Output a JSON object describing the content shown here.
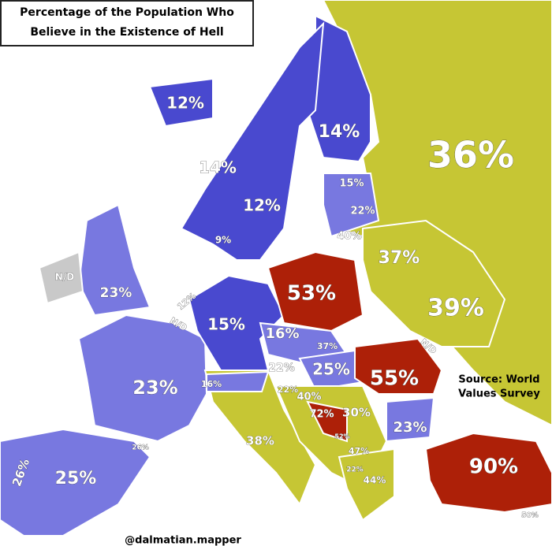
{
  "header": {
    "title_lines": [
      "Percentage of the Population Who",
      "Believe in the Existence of Hell"
    ]
  },
  "labels": [
    "12%",
    "14%",
    "36%",
    "14%",
    "15%",
    "12%",
    "22%",
    "9%",
    "40%",
    "37%",
    "N/D",
    "23%",
    "53%",
    "39%",
    "12%",
    "N/D",
    "15%",
    "16%",
    "37%",
    "N/D",
    "22%",
    "25%",
    "55%",
    "23%",
    "16%",
    "22%",
    "40%",
    "72%",
    "30%",
    "52%",
    "23%",
    "38%",
    "26%",
    "47%",
    "90%",
    "26%",
    "25%",
    "22%",
    "44%",
    "50%"
  ],
  "source_lines": [
    "Source: World",
    "Values Survey"
  ],
  "credit": "@dalmatian.mapper"
}
